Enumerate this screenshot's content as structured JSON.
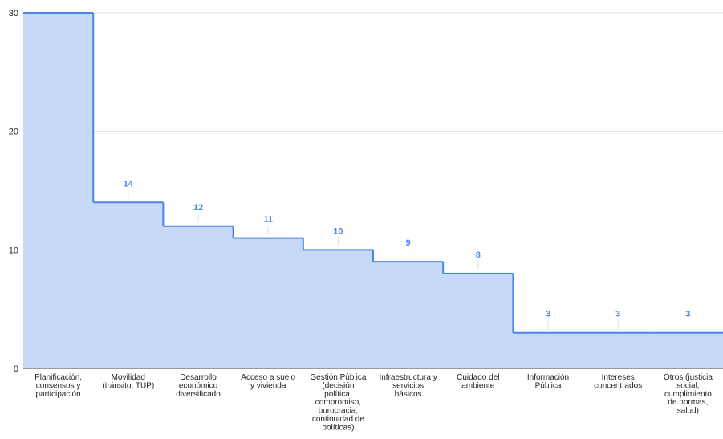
{
  "chart_data": {
    "type": "area",
    "step": true,
    "categories": [
      [
        "Planificación,",
        "consensos y",
        "participación"
      ],
      [
        "Movilidad",
        "(tránsito, TUP)"
      ],
      [
        "Desarrollo",
        "económico",
        "diversificado"
      ],
      [
        "Acceso a suelo",
        "y vivienda"
      ],
      [
        "Gestión Pública",
        "(decisión",
        "política,",
        "compromiso,",
        "burocracia,",
        "continuidad de",
        "políticas)"
      ],
      [
        "Infraestructura y",
        "servicios",
        "básicos"
      ],
      [
        "Cuidado del",
        "ambiente"
      ],
      [
        "Información",
        "Pública"
      ],
      [
        "Intereses",
        "concentrados"
      ],
      [
        "Otros (justicia",
        "social,",
        "cumplimiento",
        "de normas,",
        "salud)"
      ]
    ],
    "values": [
      30,
      14,
      12,
      11,
      10,
      9,
      8,
      3,
      3,
      3
    ],
    "data_labels": [
      "",
      "14",
      "12",
      "11",
      "10",
      "9",
      "8",
      "3",
      "3",
      "3"
    ],
    "ylim": [
      0,
      30
    ],
    "yticks": [
      "0",
      "10",
      "20",
      "30"
    ],
    "grid": true,
    "title": "",
    "xlabel": "",
    "ylabel": "",
    "colors": {
      "fill": "#c6d9f7",
      "line": "#4a86e8",
      "data_label": "#4a86e8",
      "grid": "#e0e0e0",
      "axis": "#333333"
    }
  }
}
